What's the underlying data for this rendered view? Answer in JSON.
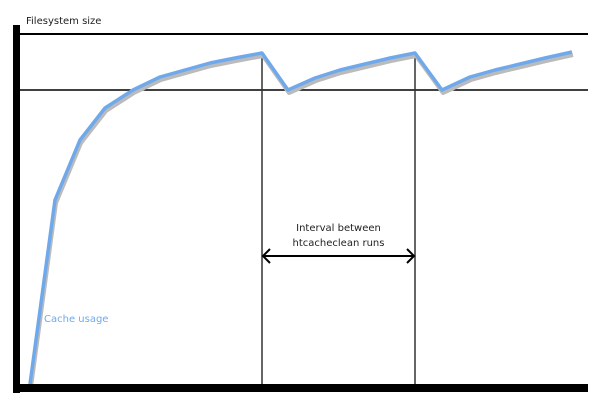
{
  "diagram": {
    "y_axis_label": "Filesystem size",
    "curve_label": "Cache usage",
    "interval_label_line1": "Interval between",
    "interval_label_line2": "htcacheclean runs",
    "colors": {
      "curve": "#6fa9ec",
      "axes": "#000000",
      "shadow": "#bbbbbb"
    }
  }
}
